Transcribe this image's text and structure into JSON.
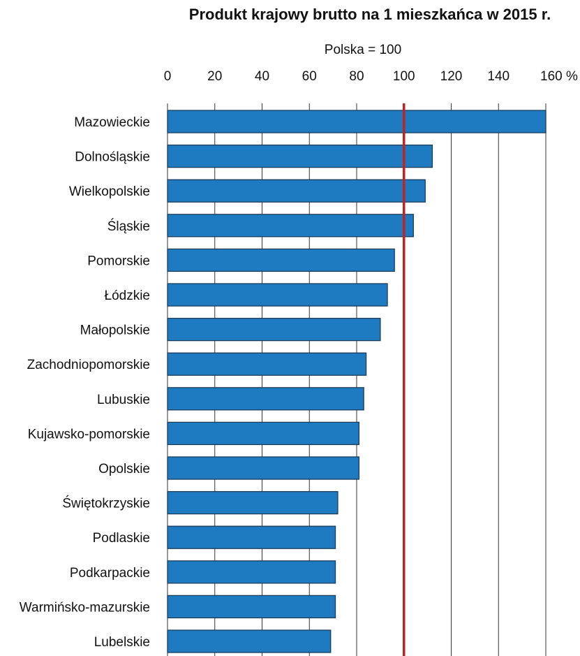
{
  "chart_data": {
    "type": "bar",
    "orientation": "horizontal",
    "title": "Produkt krajowy brutto na 1 mieszkańca w 2015 r.",
    "subtitle": "Polska = 100",
    "xlim": [
      0,
      160
    ],
    "x_ticks": [
      "0",
      "20",
      "40",
      "60",
      "80",
      "100",
      "120",
      "140",
      "160 %"
    ],
    "x_tick_values": [
      0,
      20,
      40,
      60,
      80,
      100,
      120,
      140,
      160
    ],
    "grid": true,
    "reference_line": {
      "value": 100,
      "color": "#c62121"
    },
    "bar_color": "#1f7bc1",
    "categories": [
      "Mazowieckie",
      "Dolnośląskie",
      "Wielkopolskie",
      "Śląskie",
      "Pomorskie",
      "Łódzkie",
      "Małopolskie",
      "Zachodniopomorskie",
      "Lubuskie",
      "Kujawsko-pomorskie",
      "Opolskie",
      "Świętokrzyskie",
      "Podlaskie",
      "Podkarpackie",
      "Warmińsko-mazurskie",
      "Lubelskie"
    ],
    "values": [
      160,
      112,
      109,
      104,
      96,
      93,
      90,
      84,
      83,
      81,
      81,
      72,
      71,
      71,
      71,
      69
    ]
  }
}
